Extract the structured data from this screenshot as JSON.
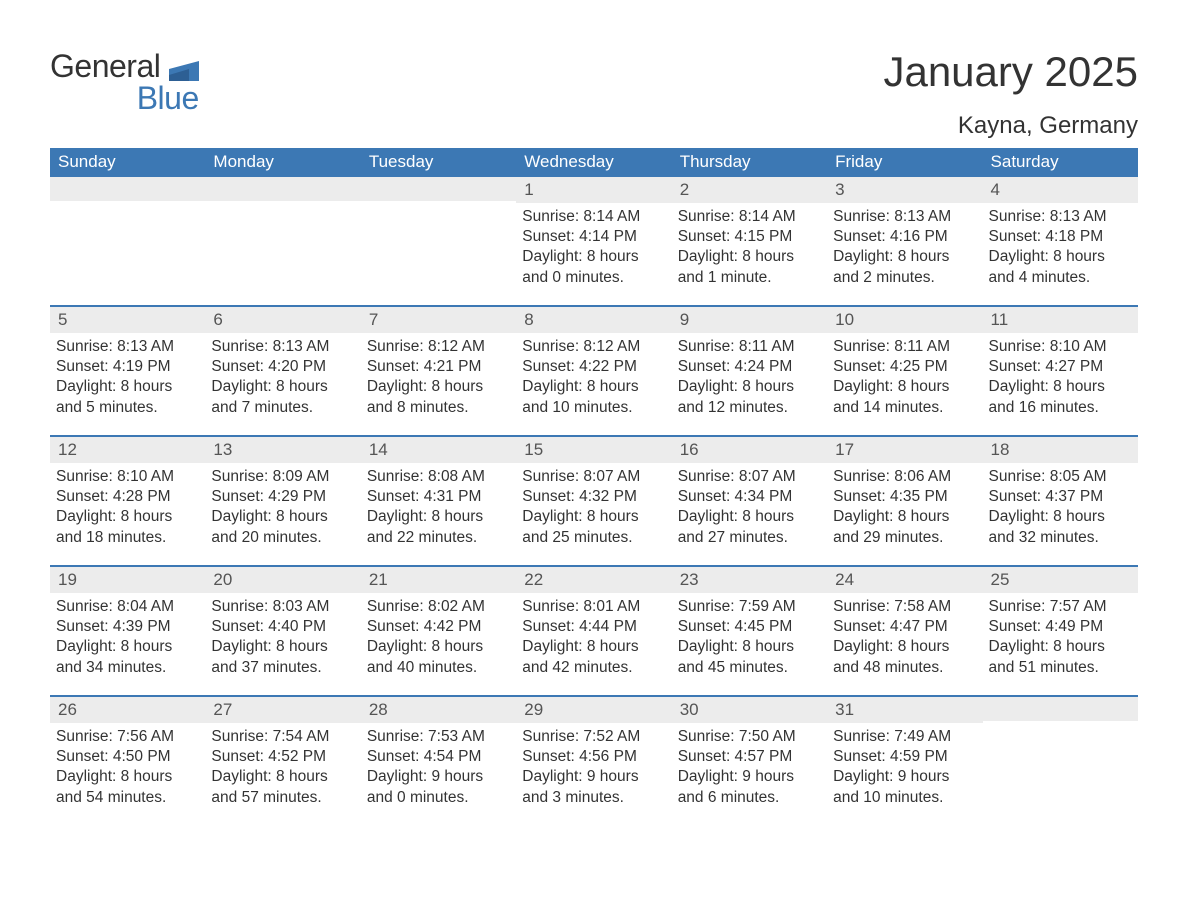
{
  "logo": {
    "word1": "General",
    "word2": "Blue",
    "shape_color": "#3c78b4"
  },
  "title": "January 2025",
  "location": "Kayna, Germany",
  "colors": {
    "header_bg": "#3c78b4",
    "header_text": "#ffffff",
    "daynum_bg": "#ececec",
    "text": "#333333",
    "rule": "#3c78b4"
  },
  "weekdays": [
    "Sunday",
    "Monday",
    "Tuesday",
    "Wednesday",
    "Thursday",
    "Friday",
    "Saturday"
  ],
  "weeks": [
    [
      {
        "n": "",
        "sunrise": "",
        "sunset": "",
        "daylight": ""
      },
      {
        "n": "",
        "sunrise": "",
        "sunset": "",
        "daylight": ""
      },
      {
        "n": "",
        "sunrise": "",
        "sunset": "",
        "daylight": ""
      },
      {
        "n": "1",
        "sunrise": "Sunrise: 8:14 AM",
        "sunset": "Sunset: 4:14 PM",
        "daylight": "Daylight: 8 hours and 0 minutes."
      },
      {
        "n": "2",
        "sunrise": "Sunrise: 8:14 AM",
        "sunset": "Sunset: 4:15 PM",
        "daylight": "Daylight: 8 hours and 1 minute."
      },
      {
        "n": "3",
        "sunrise": "Sunrise: 8:13 AM",
        "sunset": "Sunset: 4:16 PM",
        "daylight": "Daylight: 8 hours and 2 minutes."
      },
      {
        "n": "4",
        "sunrise": "Sunrise: 8:13 AM",
        "sunset": "Sunset: 4:18 PM",
        "daylight": "Daylight: 8 hours and 4 minutes."
      }
    ],
    [
      {
        "n": "5",
        "sunrise": "Sunrise: 8:13 AM",
        "sunset": "Sunset: 4:19 PM",
        "daylight": "Daylight: 8 hours and 5 minutes."
      },
      {
        "n": "6",
        "sunrise": "Sunrise: 8:13 AM",
        "sunset": "Sunset: 4:20 PM",
        "daylight": "Daylight: 8 hours and 7 minutes."
      },
      {
        "n": "7",
        "sunrise": "Sunrise: 8:12 AM",
        "sunset": "Sunset: 4:21 PM",
        "daylight": "Daylight: 8 hours and 8 minutes."
      },
      {
        "n": "8",
        "sunrise": "Sunrise: 8:12 AM",
        "sunset": "Sunset: 4:22 PM",
        "daylight": "Daylight: 8 hours and 10 minutes."
      },
      {
        "n": "9",
        "sunrise": "Sunrise: 8:11 AM",
        "sunset": "Sunset: 4:24 PM",
        "daylight": "Daylight: 8 hours and 12 minutes."
      },
      {
        "n": "10",
        "sunrise": "Sunrise: 8:11 AM",
        "sunset": "Sunset: 4:25 PM",
        "daylight": "Daylight: 8 hours and 14 minutes."
      },
      {
        "n": "11",
        "sunrise": "Sunrise: 8:10 AM",
        "sunset": "Sunset: 4:27 PM",
        "daylight": "Daylight: 8 hours and 16 minutes."
      }
    ],
    [
      {
        "n": "12",
        "sunrise": "Sunrise: 8:10 AM",
        "sunset": "Sunset: 4:28 PM",
        "daylight": "Daylight: 8 hours and 18 minutes."
      },
      {
        "n": "13",
        "sunrise": "Sunrise: 8:09 AM",
        "sunset": "Sunset: 4:29 PM",
        "daylight": "Daylight: 8 hours and 20 minutes."
      },
      {
        "n": "14",
        "sunrise": "Sunrise: 8:08 AM",
        "sunset": "Sunset: 4:31 PM",
        "daylight": "Daylight: 8 hours and 22 minutes."
      },
      {
        "n": "15",
        "sunrise": "Sunrise: 8:07 AM",
        "sunset": "Sunset: 4:32 PM",
        "daylight": "Daylight: 8 hours and 25 minutes."
      },
      {
        "n": "16",
        "sunrise": "Sunrise: 8:07 AM",
        "sunset": "Sunset: 4:34 PM",
        "daylight": "Daylight: 8 hours and 27 minutes."
      },
      {
        "n": "17",
        "sunrise": "Sunrise: 8:06 AM",
        "sunset": "Sunset: 4:35 PM",
        "daylight": "Daylight: 8 hours and 29 minutes."
      },
      {
        "n": "18",
        "sunrise": "Sunrise: 8:05 AM",
        "sunset": "Sunset: 4:37 PM",
        "daylight": "Daylight: 8 hours and 32 minutes."
      }
    ],
    [
      {
        "n": "19",
        "sunrise": "Sunrise: 8:04 AM",
        "sunset": "Sunset: 4:39 PM",
        "daylight": "Daylight: 8 hours and 34 minutes."
      },
      {
        "n": "20",
        "sunrise": "Sunrise: 8:03 AM",
        "sunset": "Sunset: 4:40 PM",
        "daylight": "Daylight: 8 hours and 37 minutes."
      },
      {
        "n": "21",
        "sunrise": "Sunrise: 8:02 AM",
        "sunset": "Sunset: 4:42 PM",
        "daylight": "Daylight: 8 hours and 40 minutes."
      },
      {
        "n": "22",
        "sunrise": "Sunrise: 8:01 AM",
        "sunset": "Sunset: 4:44 PM",
        "daylight": "Daylight: 8 hours and 42 minutes."
      },
      {
        "n": "23",
        "sunrise": "Sunrise: 7:59 AM",
        "sunset": "Sunset: 4:45 PM",
        "daylight": "Daylight: 8 hours and 45 minutes."
      },
      {
        "n": "24",
        "sunrise": "Sunrise: 7:58 AM",
        "sunset": "Sunset: 4:47 PM",
        "daylight": "Daylight: 8 hours and 48 minutes."
      },
      {
        "n": "25",
        "sunrise": "Sunrise: 7:57 AM",
        "sunset": "Sunset: 4:49 PM",
        "daylight": "Daylight: 8 hours and 51 minutes."
      }
    ],
    [
      {
        "n": "26",
        "sunrise": "Sunrise: 7:56 AM",
        "sunset": "Sunset: 4:50 PM",
        "daylight": "Daylight: 8 hours and 54 minutes."
      },
      {
        "n": "27",
        "sunrise": "Sunrise: 7:54 AM",
        "sunset": "Sunset: 4:52 PM",
        "daylight": "Daylight: 8 hours and 57 minutes."
      },
      {
        "n": "28",
        "sunrise": "Sunrise: 7:53 AM",
        "sunset": "Sunset: 4:54 PM",
        "daylight": "Daylight: 9 hours and 0 minutes."
      },
      {
        "n": "29",
        "sunrise": "Sunrise: 7:52 AM",
        "sunset": "Sunset: 4:56 PM",
        "daylight": "Daylight: 9 hours and 3 minutes."
      },
      {
        "n": "30",
        "sunrise": "Sunrise: 7:50 AM",
        "sunset": "Sunset: 4:57 PM",
        "daylight": "Daylight: 9 hours and 6 minutes."
      },
      {
        "n": "31",
        "sunrise": "Sunrise: 7:49 AM",
        "sunset": "Sunset: 4:59 PM",
        "daylight": "Daylight: 9 hours and 10 minutes."
      },
      {
        "n": "",
        "sunrise": "",
        "sunset": "",
        "daylight": ""
      }
    ]
  ]
}
